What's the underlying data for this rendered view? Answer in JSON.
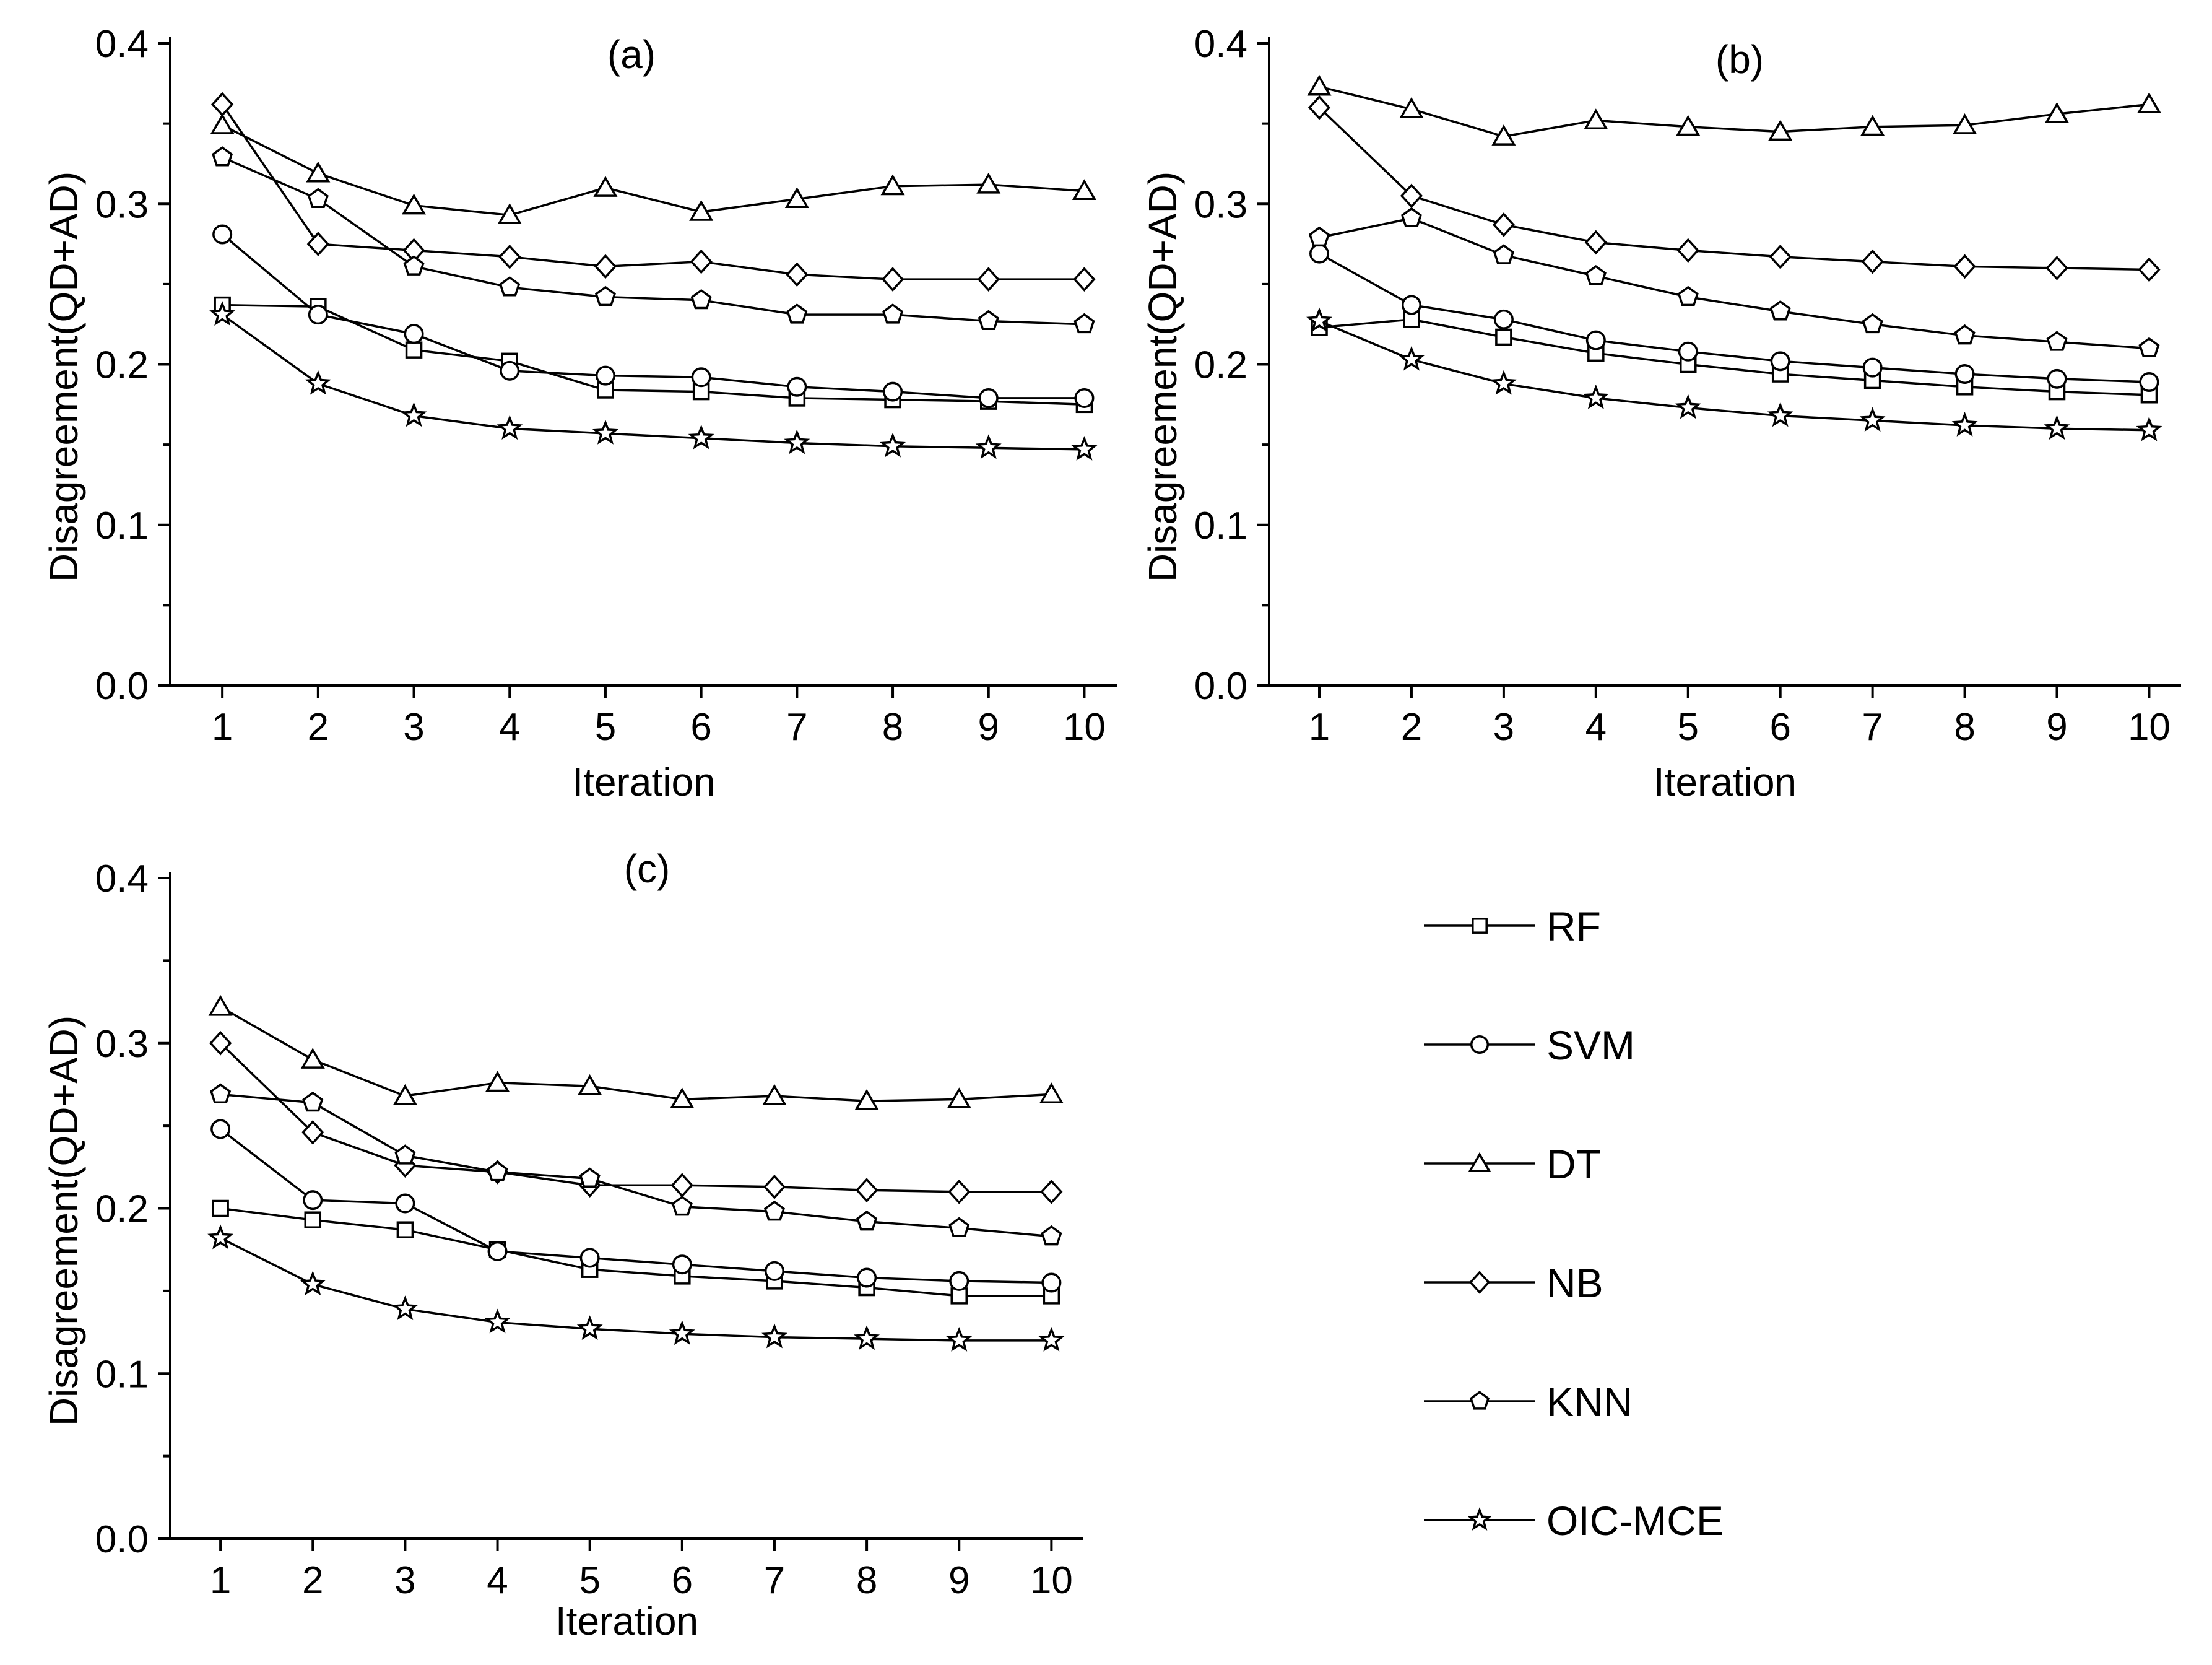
{
  "legend": {
    "entries": [
      {
        "label": "RF",
        "marker": "square"
      },
      {
        "label": "SVM",
        "marker": "circle"
      },
      {
        "label": "DT",
        "marker": "triangle"
      },
      {
        "label": "NB",
        "marker": "diamond"
      },
      {
        "label": "KNN",
        "marker": "pentagon"
      },
      {
        "label": "OIC-MCE",
        "marker": "star"
      }
    ]
  },
  "chart_data": [
    {
      "type": "line",
      "title": "(a)",
      "xlabel": "Iteration",
      "ylabel": "Disagreement(QD+AD)",
      "x": [
        1,
        2,
        3,
        4,
        5,
        6,
        7,
        8,
        9,
        10
      ],
      "xlim": [
        0.5,
        10.5
      ],
      "ylim": [
        0,
        0.4
      ],
      "yticks": [
        "0.0",
        "0.1",
        "0.2",
        "0.3",
        "0.4"
      ],
      "series": [
        {
          "name": "RF",
          "marker": "square",
          "values": [
            0.237,
            0.236,
            0.209,
            0.202,
            0.184,
            0.183,
            0.179,
            0.178,
            0.177,
            0.175
          ]
        },
        {
          "name": "SVM",
          "marker": "circle",
          "values": [
            0.281,
            0.231,
            0.219,
            0.196,
            0.193,
            0.192,
            0.186,
            0.183,
            0.179,
            0.179
          ]
        },
        {
          "name": "DT",
          "marker": "triangle",
          "values": [
            0.349,
            0.319,
            0.299,
            0.293,
            0.31,
            0.295,
            0.303,
            0.311,
            0.312,
            0.308
          ]
        },
        {
          "name": "NB",
          "marker": "diamond",
          "values": [
            0.362,
            0.275,
            0.271,
            0.267,
            0.261,
            0.264,
            0.256,
            0.253,
            0.253,
            0.253
          ]
        },
        {
          "name": "KNN",
          "marker": "pentagon",
          "values": [
            0.329,
            0.303,
            0.261,
            0.248,
            0.242,
            0.24,
            0.231,
            0.231,
            0.227,
            0.225
          ]
        },
        {
          "name": "OIC-MCE",
          "marker": "star",
          "values": [
            0.231,
            0.188,
            0.168,
            0.16,
            0.157,
            0.154,
            0.151,
            0.149,
            0.148,
            0.147
          ]
        }
      ]
    },
    {
      "type": "line",
      "title": "(b)",
      "xlabel": "Iteration",
      "ylabel": "Disagreement(QD+AD)",
      "x": [
        1,
        2,
        3,
        4,
        5,
        6,
        7,
        8,
        9,
        10
      ],
      "xlim": [
        0.5,
        10.5
      ],
      "ylim": [
        0,
        0.4
      ],
      "yticks": [
        "0.0",
        "0.1",
        "0.2",
        "0.3",
        "0.4"
      ],
      "series": [
        {
          "name": "RF",
          "marker": "square",
          "values": [
            0.223,
            0.228,
            0.217,
            0.207,
            0.2,
            0.194,
            0.19,
            0.186,
            0.183,
            0.181
          ]
        },
        {
          "name": "SVM",
          "marker": "circle",
          "values": [
            0.269,
            0.237,
            0.228,
            0.215,
            0.208,
            0.202,
            0.198,
            0.194,
            0.191,
            0.189
          ]
        },
        {
          "name": "DT",
          "marker": "triangle",
          "values": [
            0.373,
            0.359,
            0.342,
            0.352,
            0.348,
            0.345,
            0.348,
            0.349,
            0.356,
            0.362
          ]
        },
        {
          "name": "NB",
          "marker": "diamond",
          "values": [
            0.36,
            0.305,
            0.287,
            0.276,
            0.271,
            0.267,
            0.264,
            0.261,
            0.26,
            0.259
          ]
        },
        {
          "name": "KNN",
          "marker": "pentagon",
          "values": [
            0.279,
            0.291,
            0.268,
            0.255,
            0.242,
            0.233,
            0.225,
            0.218,
            0.214,
            0.21
          ]
        },
        {
          "name": "OIC-MCE",
          "marker": "star",
          "values": [
            0.227,
            0.203,
            0.188,
            0.179,
            0.173,
            0.168,
            0.165,
            0.162,
            0.16,
            0.159
          ]
        }
      ]
    },
    {
      "type": "line",
      "title": "(c)",
      "xlabel": "Iteration",
      "ylabel": "Disagreement(QD+AD)",
      "x": [
        1,
        2,
        3,
        4,
        5,
        6,
        7,
        8,
        9,
        10
      ],
      "xlim": [
        0.5,
        10.5
      ],
      "ylim": [
        0,
        0.4
      ],
      "yticks": [
        "0.0",
        "0.1",
        "0.2",
        "0.3",
        "0.4"
      ],
      "series": [
        {
          "name": "RF",
          "marker": "square",
          "values": [
            0.2,
            0.193,
            0.187,
            0.175,
            0.163,
            0.159,
            0.156,
            0.152,
            0.147,
            0.147
          ]
        },
        {
          "name": "SVM",
          "marker": "circle",
          "values": [
            0.248,
            0.205,
            0.203,
            0.174,
            0.17,
            0.166,
            0.162,
            0.158,
            0.156,
            0.155
          ]
        },
        {
          "name": "DT",
          "marker": "triangle",
          "values": [
            0.322,
            0.29,
            0.268,
            0.276,
            0.274,
            0.266,
            0.268,
            0.265,
            0.266,
            0.269
          ]
        },
        {
          "name": "NB",
          "marker": "diamond",
          "values": [
            0.3,
            0.246,
            0.226,
            0.222,
            0.214,
            0.214,
            0.213,
            0.211,
            0.21,
            0.21
          ]
        },
        {
          "name": "KNN",
          "marker": "pentagon",
          "values": [
            0.269,
            0.264,
            0.232,
            0.222,
            0.218,
            0.201,
            0.198,
            0.192,
            0.188,
            0.183
          ]
        },
        {
          "name": "OIC-MCE",
          "marker": "star",
          "values": [
            0.182,
            0.154,
            0.139,
            0.131,
            0.127,
            0.124,
            0.122,
            0.121,
            0.12,
            0.12
          ]
        }
      ]
    }
  ]
}
